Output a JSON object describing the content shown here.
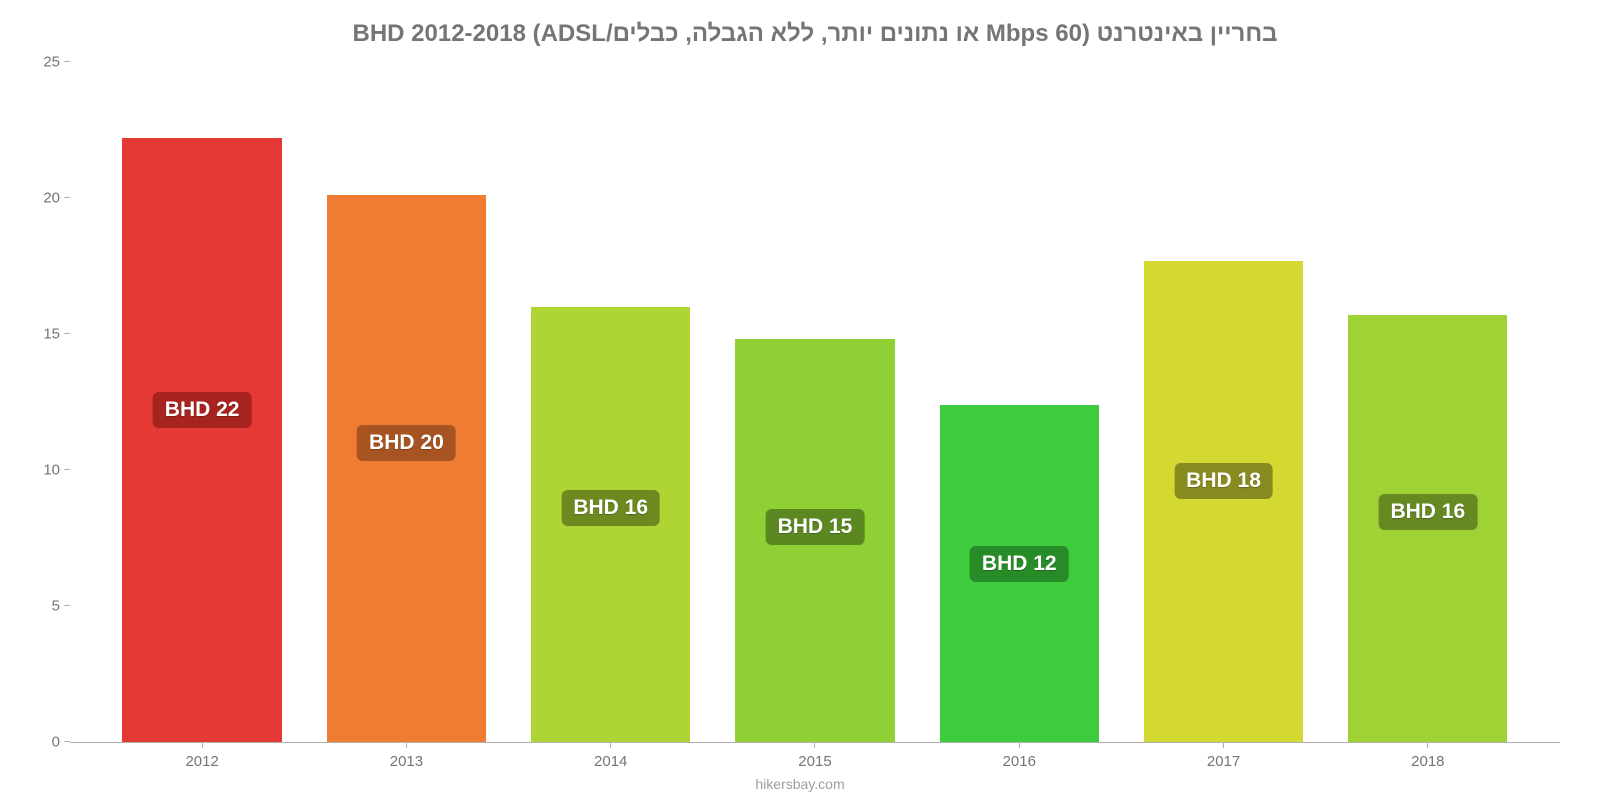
{
  "chart": {
    "type": "bar",
    "title": "בחריין באינטרנט (60 Mbps או נתונים יותר, ללא הגבלה, כבלים/ADSL) BHD 2012-2018",
    "title_color": "#757575",
    "title_fontsize": 24,
    "background_color": "#ffffff",
    "ylim": [
      0,
      25
    ],
    "ytick_step": 5,
    "yticks": [
      {
        "pos": 0,
        "label": "0"
      },
      {
        "pos": 5,
        "label": "5"
      },
      {
        "pos": 10,
        "label": "10"
      },
      {
        "pos": 15,
        "label": "15"
      },
      {
        "pos": 20,
        "label": "20"
      },
      {
        "pos": 25,
        "label": "25"
      }
    ],
    "categories": [
      "2012",
      "2013",
      "2014",
      "2015",
      "2016",
      "2017",
      "2018"
    ],
    "bars": [
      {
        "value": 22.2,
        "label": "BHD 22",
        "fill": "#e53935",
        "badge_bg": "#a62320"
      },
      {
        "value": 20.1,
        "label": "BHD 20",
        "fill": "#ef7c32",
        "badge_bg": "#a85422"
      },
      {
        "value": 16.0,
        "label": "BHD 16",
        "fill": "#aed534",
        "badge_bg": "#6f8921"
      },
      {
        "value": 14.8,
        "label": "BHD 15",
        "fill": "#8fd135",
        "badge_bg": "#5c8822"
      },
      {
        "value": 12.4,
        "label": "BHD 12",
        "fill": "#3ecb3e",
        "badge_bg": "#278c27"
      },
      {
        "value": 17.7,
        "label": "BHD 18",
        "fill": "#d4d932",
        "badge_bg": "#888b1f"
      },
      {
        "value": 15.7,
        "label": "BHD 16",
        "fill": "#9fd335",
        "badge_bg": "#678922"
      }
    ],
    "bar_width_ratio": 0.78,
    "axis_color": "#b0b0b0",
    "tick_label_color": "#757575",
    "tick_fontsize": 15,
    "bar_label_fontsize": 21,
    "attribution": "hikersbay.com",
    "attribution_color": "#9e9e9e"
  }
}
